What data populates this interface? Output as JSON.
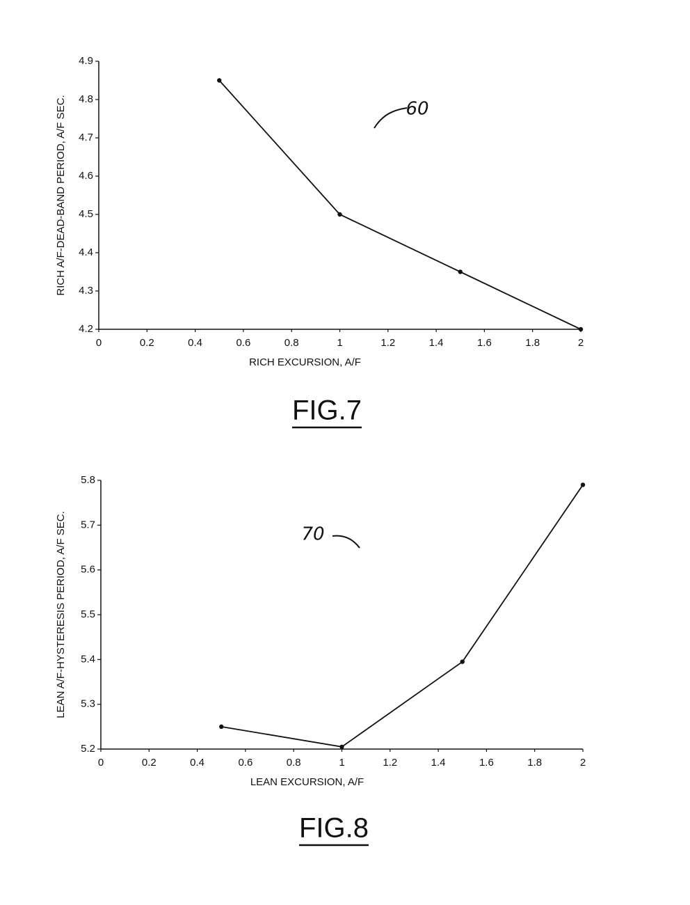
{
  "chart_data": [
    {
      "type": "line",
      "x": [
        0.5,
        1,
        1.5,
        2
      ],
      "values": [
        4.85,
        4.5,
        4.35,
        4.2
      ],
      "xlim": [
        0,
        2
      ],
      "ylim": [
        4.2,
        4.9
      ],
      "xticks": [
        0,
        0.2,
        0.4,
        0.6,
        0.8,
        1,
        1.2,
        1.4,
        1.6,
        1.8,
        2
      ],
      "yticks": [
        4.2,
        4.3,
        4.4,
        4.5,
        4.6,
        4.7,
        4.8,
        4.9
      ],
      "x_label": "RICH EXCURSION, A/F",
      "y_label": "RICH A/F-DEAD-BAND PERIOD, A/F SEC.",
      "annotation": "60",
      "figure_label": "FIG.7",
      "color": "#111111"
    },
    {
      "type": "line",
      "x": [
        0.5,
        1,
        1.5,
        2
      ],
      "values": [
        5.25,
        5.205,
        5.395,
        5.79
      ],
      "xlim": [
        0,
        2
      ],
      "ylim": [
        5.2,
        5.8
      ],
      "xticks": [
        0,
        0.2,
        0.4,
        0.6,
        0.8,
        1,
        1.2,
        1.4,
        1.6,
        1.8,
        2
      ],
      "yticks": [
        5.2,
        5.3,
        5.4,
        5.5,
        5.6,
        5.7,
        5.8
      ],
      "x_label": "LEAN EXCURSION, A/F",
      "y_label": "LEAN A/F-HYSTERESIS PERIOD, A/F SEC.",
      "annotation": "70",
      "figure_label": "FIG.8",
      "color": "#111111"
    }
  ]
}
